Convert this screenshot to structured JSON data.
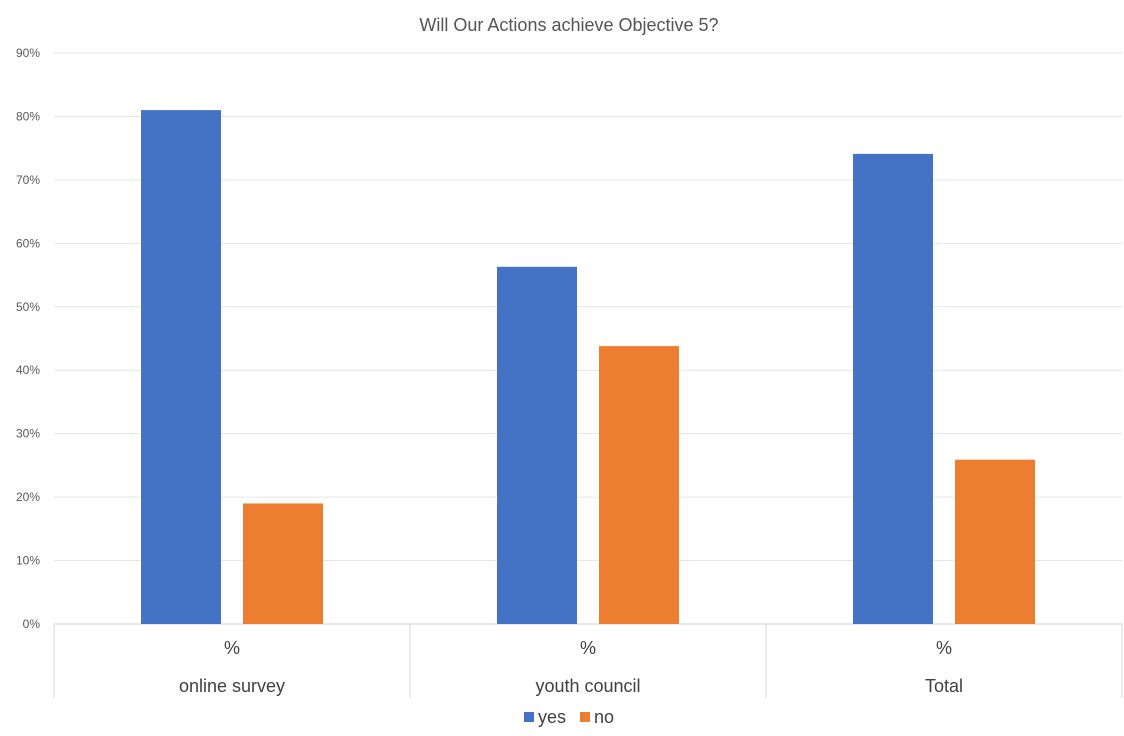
{
  "chart_data": {
    "type": "bar",
    "title": "Will Our Actions achieve Objective 5?",
    "xlabel": "",
    "ylabel": "",
    "ylim": [
      0,
      90
    ],
    "y_ticks": [
      "0%",
      "10%",
      "20%",
      "30%",
      "40%",
      "50%",
      "60%",
      "70%",
      "80%",
      "90%"
    ],
    "y_tick_values": [
      0,
      10,
      20,
      30,
      40,
      50,
      60,
      70,
      80,
      90
    ],
    "categories": [
      "online survey",
      "youth council",
      "Total"
    ],
    "sub_labels": [
      "%",
      "%",
      "%"
    ],
    "series": [
      {
        "name": "yes",
        "color": "#4472C4",
        "values": [
          81,
          56.3,
          74.1
        ]
      },
      {
        "name": "no",
        "color": "#ED7D31",
        "values": [
          19,
          43.8,
          25.9
        ]
      }
    ],
    "grid": true,
    "legend_position": "bottom"
  }
}
